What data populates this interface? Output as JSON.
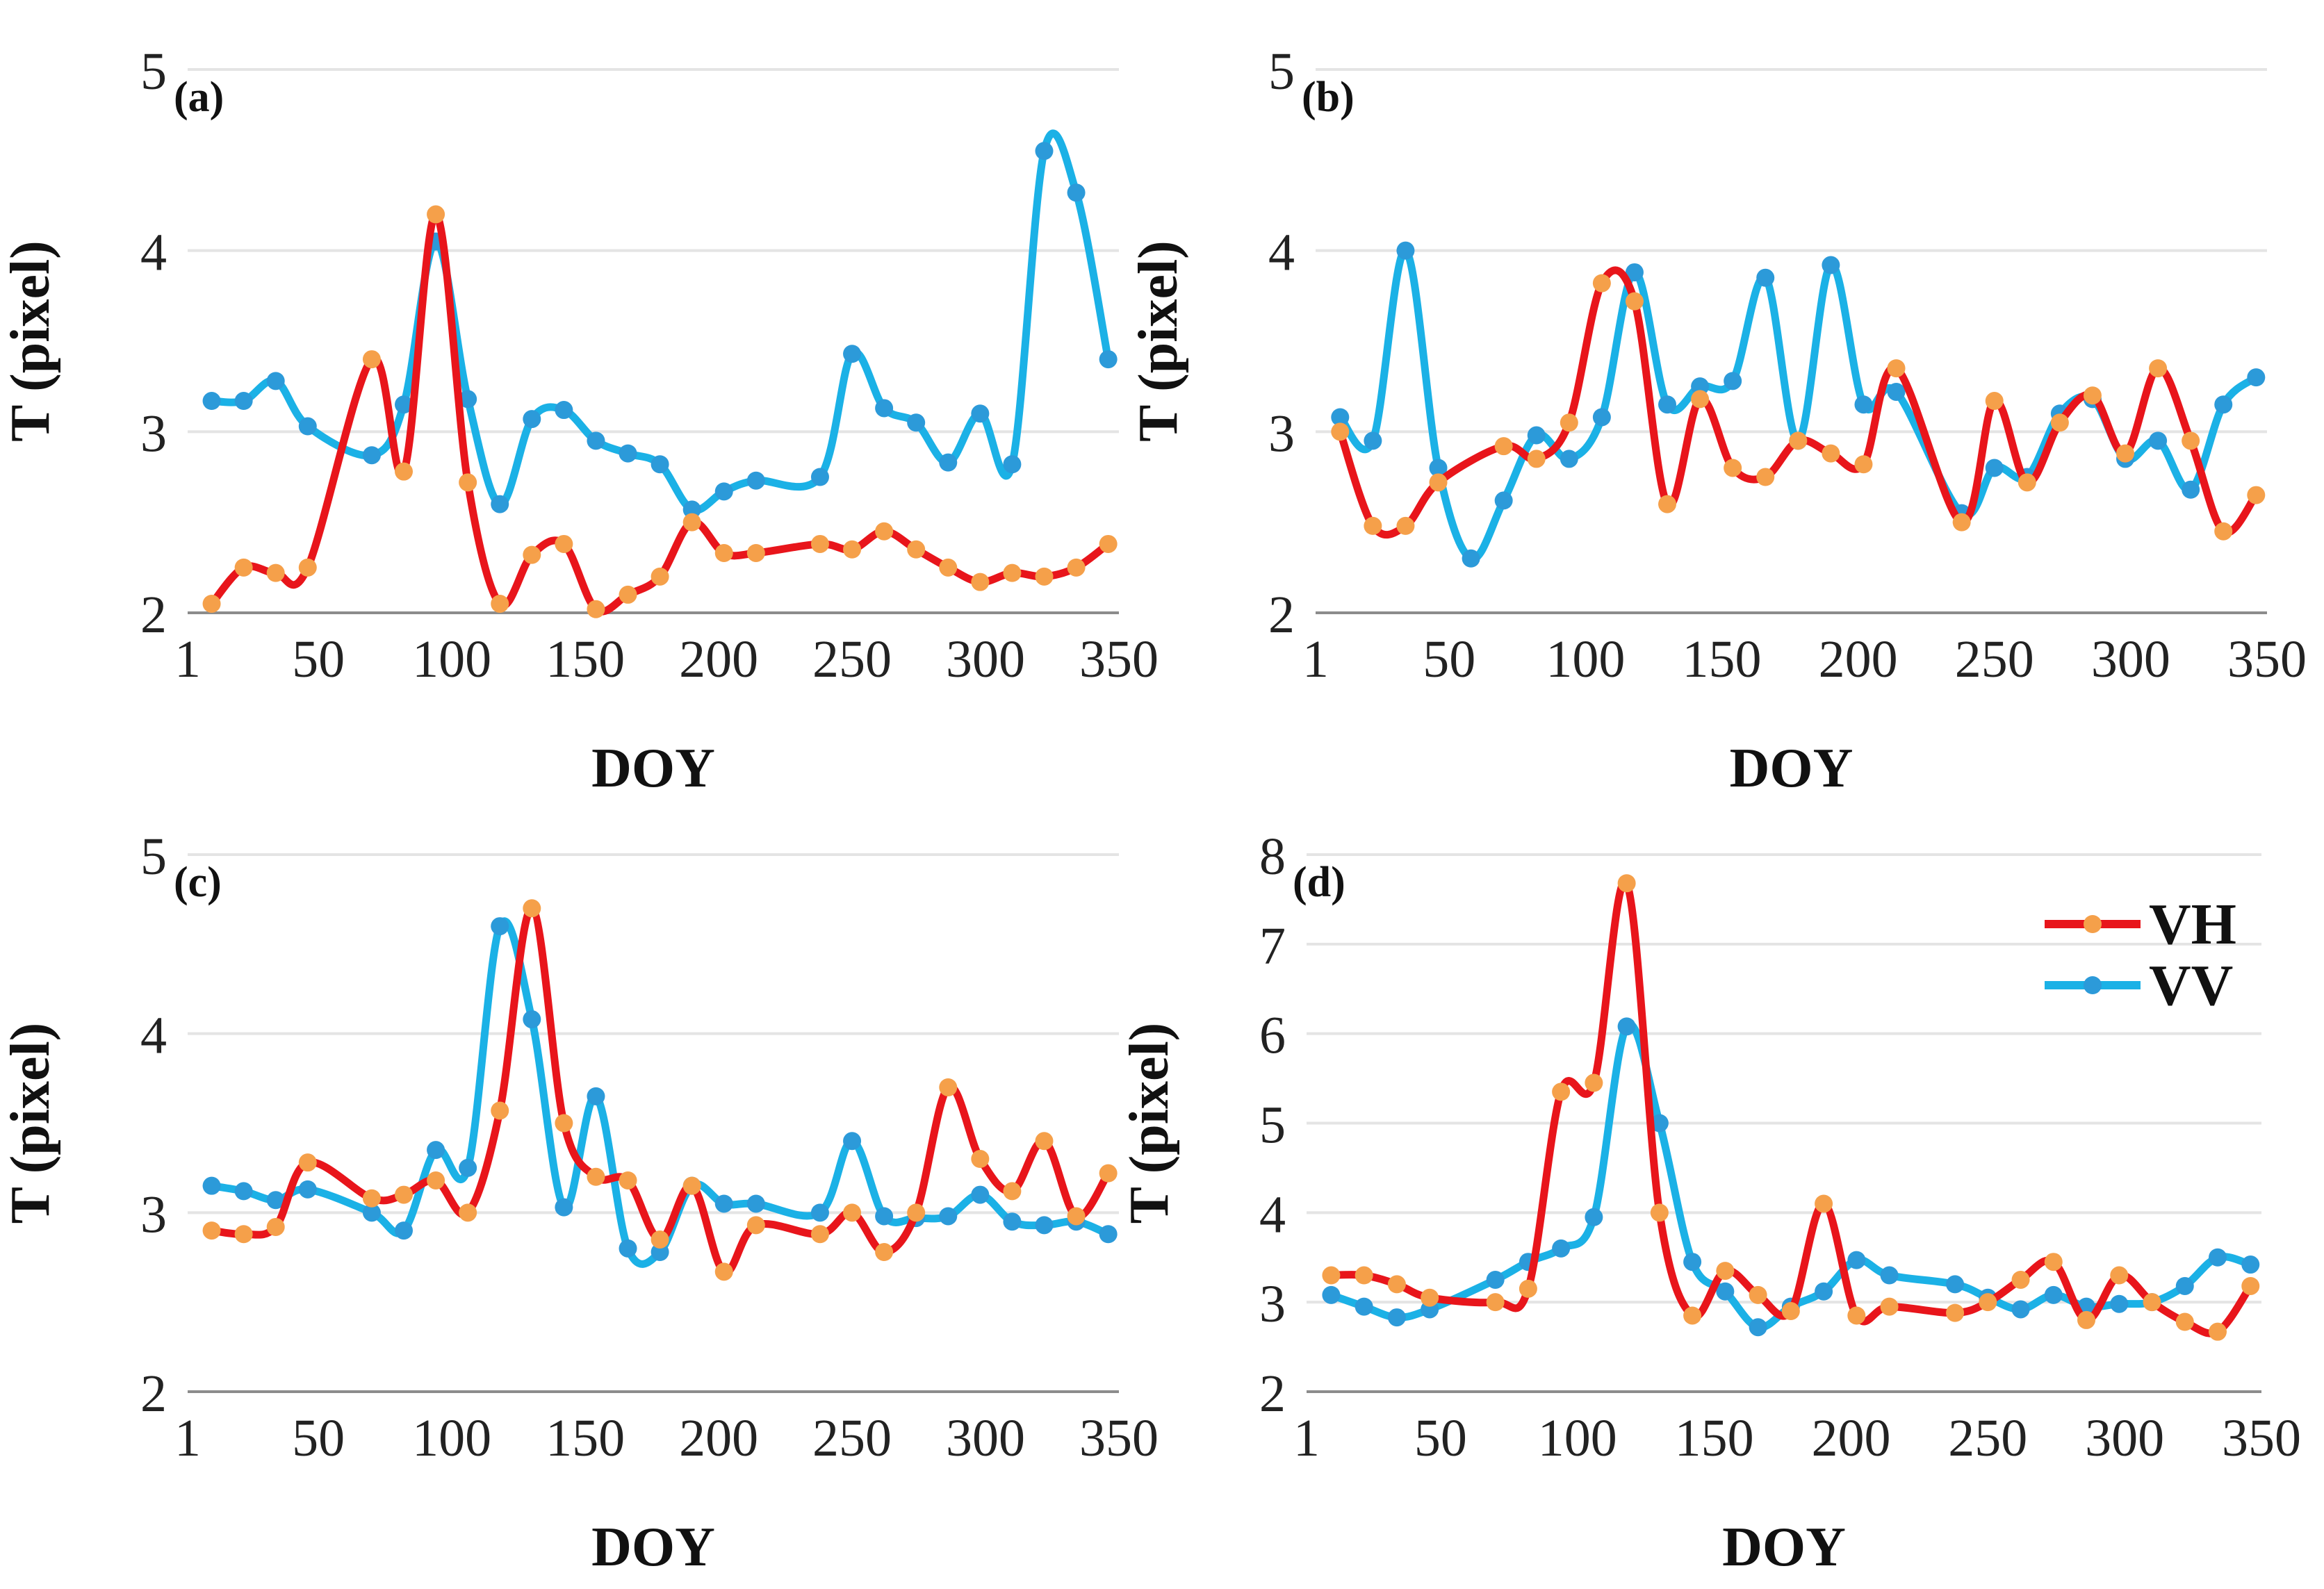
{
  "colors": {
    "VH": "#e8151b",
    "VV": "#1bb1e6",
    "VH_marker": "#f5a04a",
    "VV_marker": "#2c9ad9"
  },
  "legend": {
    "items": [
      {
        "key": "VH",
        "label": "VH"
      },
      {
        "key": "VV",
        "label": "VV"
      }
    ],
    "placement": "top-right of panel (d)"
  },
  "chart_data": [
    {
      "type": "line",
      "panel_label": "(a)",
      "xlabel": "DOY",
      "ylabel": "T (pixel)",
      "xlim": [
        1,
        350
      ],
      "ylim": [
        2,
        5
      ],
      "xticks": [
        1,
        50,
        100,
        150,
        200,
        250,
        300,
        350
      ],
      "yticks": [
        2,
        3,
        4,
        5
      ],
      "series": [
        {
          "name": "VH",
          "x": [
            10,
            22,
            34,
            46,
            70,
            82,
            94,
            106,
            118,
            130,
            142,
            154,
            166,
            178,
            190,
            202,
            214,
            238,
            250,
            262,
            274,
            286,
            298,
            310,
            322,
            334,
            346
          ],
          "y": [
            2.05,
            2.25,
            2.22,
            2.25,
            3.4,
            2.78,
            4.2,
            2.72,
            2.05,
            2.32,
            2.38,
            2.02,
            2.1,
            2.2,
            2.5,
            2.33,
            2.33,
            2.38,
            2.35,
            2.45,
            2.35,
            2.25,
            2.17,
            2.22,
            2.2,
            2.25,
            2.38
          ]
        },
        {
          "name": "VV",
          "x": [
            10,
            22,
            34,
            46,
            70,
            82,
            94,
            106,
            118,
            130,
            142,
            154,
            166,
            178,
            190,
            202,
            214,
            238,
            250,
            262,
            274,
            286,
            298,
            310,
            322,
            334,
            346
          ],
          "y": [
            3.17,
            3.17,
            3.28,
            3.03,
            2.87,
            3.15,
            4.05,
            3.18,
            2.6,
            3.07,
            3.12,
            2.95,
            2.88,
            2.82,
            2.57,
            2.67,
            2.73,
            2.75,
            3.43,
            3.13,
            3.05,
            2.83,
            3.1,
            2.82,
            4.55,
            4.32,
            3.4
          ]
        }
      ]
    },
    {
      "type": "line",
      "panel_label": "(b)",
      "xlabel": "DOY",
      "ylabel": "T (pixel)",
      "xlim": [
        1,
        350
      ],
      "ylim": [
        2,
        5
      ],
      "xticks": [
        1,
        50,
        100,
        150,
        200,
        250,
        300,
        350
      ],
      "yticks": [
        2,
        3,
        4,
        5
      ],
      "series": [
        {
          "name": "VH",
          "x": [
            10,
            22,
            34,
            46,
            70,
            82,
            94,
            106,
            118,
            130,
            142,
            154,
            166,
            178,
            190,
            202,
            214,
            238,
            250,
            262,
            274,
            286,
            298,
            310,
            322,
            334,
            346
          ],
          "y": [
            3.0,
            2.48,
            2.48,
            2.72,
            2.92,
            2.85,
            3.05,
            3.82,
            3.72,
            2.6,
            3.18,
            2.8,
            2.75,
            2.95,
            2.88,
            2.82,
            3.35,
            2.5,
            3.17,
            2.72,
            3.05,
            3.2,
            2.88,
            3.35,
            2.95,
            2.45,
            2.65
          ]
        },
        {
          "name": "VV",
          "x": [
            10,
            22,
            34,
            46,
            58,
            70,
            82,
            94,
            106,
            118,
            130,
            142,
            154,
            166,
            178,
            190,
            202,
            214,
            238,
            250,
            262,
            274,
            286,
            298,
            310,
            322,
            334,
            346
          ],
          "y": [
            3.08,
            2.95,
            4.0,
            2.8,
            2.3,
            2.62,
            2.98,
            2.85,
            3.08,
            3.88,
            3.15,
            3.25,
            3.28,
            3.85,
            2.95,
            3.92,
            3.15,
            3.22,
            2.55,
            2.8,
            2.75,
            3.1,
            3.18,
            2.85,
            2.95,
            2.68,
            3.15,
            3.3
          ]
        }
      ]
    },
    {
      "type": "line",
      "panel_label": "(c)",
      "xlabel": "DOY",
      "ylabel": "T (pixel)",
      "xlim": [
        1,
        350
      ],
      "ylim": [
        2,
        5
      ],
      "xticks": [
        1,
        50,
        100,
        150,
        200,
        250,
        300,
        350
      ],
      "yticks": [
        2,
        3,
        4,
        5
      ],
      "series": [
        {
          "name": "VH",
          "x": [
            10,
            22,
            34,
            46,
            70,
            82,
            94,
            106,
            118,
            130,
            142,
            154,
            166,
            178,
            190,
            202,
            214,
            238,
            250,
            262,
            274,
            286,
            298,
            310,
            322,
            334,
            346
          ],
          "y": [
            2.9,
            2.88,
            2.92,
            3.28,
            3.08,
            3.1,
            3.18,
            3.0,
            3.57,
            4.7,
            3.5,
            3.2,
            3.18,
            2.85,
            3.15,
            2.67,
            2.93,
            2.88,
            3.0,
            2.78,
            3.0,
            3.7,
            3.3,
            3.12,
            3.4,
            2.98,
            3.22
          ]
        },
        {
          "name": "VV",
          "x": [
            10,
            22,
            34,
            46,
            70,
            82,
            94,
            106,
            118,
            130,
            142,
            154,
            166,
            178,
            190,
            202,
            214,
            238,
            250,
            262,
            274,
            286,
            298,
            310,
            322,
            334,
            346
          ],
          "y": [
            3.15,
            3.12,
            3.07,
            3.13,
            3.0,
            2.9,
            3.35,
            3.25,
            4.6,
            4.08,
            3.03,
            3.65,
            2.8,
            2.78,
            3.15,
            3.05,
            3.05,
            3.0,
            3.4,
            2.98,
            2.97,
            2.98,
            3.1,
            2.95,
            2.93,
            2.95,
            2.88
          ]
        }
      ]
    },
    {
      "type": "line",
      "panel_label": "(d)",
      "xlabel": "DOY",
      "ylabel": "T (pixel)",
      "xlim": [
        1,
        350
      ],
      "ylim": [
        2,
        8
      ],
      "xticks": [
        1,
        50,
        100,
        150,
        200,
        250,
        300,
        350
      ],
      "yticks": [
        2,
        3,
        4,
        5,
        6,
        7,
        8
      ],
      "series": [
        {
          "name": "VH",
          "x": [
            10,
            22,
            34,
            46,
            70,
            82,
            94,
            106,
            118,
            130,
            142,
            154,
            166,
            178,
            190,
            202,
            214,
            238,
            250,
            262,
            274,
            286,
            298,
            310,
            322,
            334,
            346
          ],
          "y": [
            3.3,
            3.3,
            3.2,
            3.05,
            3.0,
            3.15,
            5.35,
            5.45,
            7.68,
            4.0,
            2.85,
            3.35,
            3.08,
            2.9,
            4.1,
            2.85,
            2.95,
            2.88,
            3.0,
            3.25,
            3.45,
            2.8,
            3.3,
            3.0,
            2.78,
            2.67,
            3.18
          ]
        },
        {
          "name": "VV",
          "x": [
            10,
            22,
            34,
            46,
            70,
            82,
            94,
            106,
            118,
            130,
            142,
            154,
            166,
            178,
            190,
            202,
            214,
            238,
            250,
            262,
            274,
            286,
            298,
            310,
            322,
            334,
            346
          ],
          "y": [
            3.08,
            2.95,
            2.83,
            2.92,
            3.25,
            3.45,
            3.6,
            3.95,
            6.08,
            5.0,
            3.45,
            3.12,
            2.72,
            2.95,
            3.12,
            3.47,
            3.3,
            3.2,
            3.05,
            2.92,
            3.08,
            2.95,
            2.98,
            3.0,
            3.18,
            3.5,
            3.42
          ]
        }
      ]
    }
  ]
}
